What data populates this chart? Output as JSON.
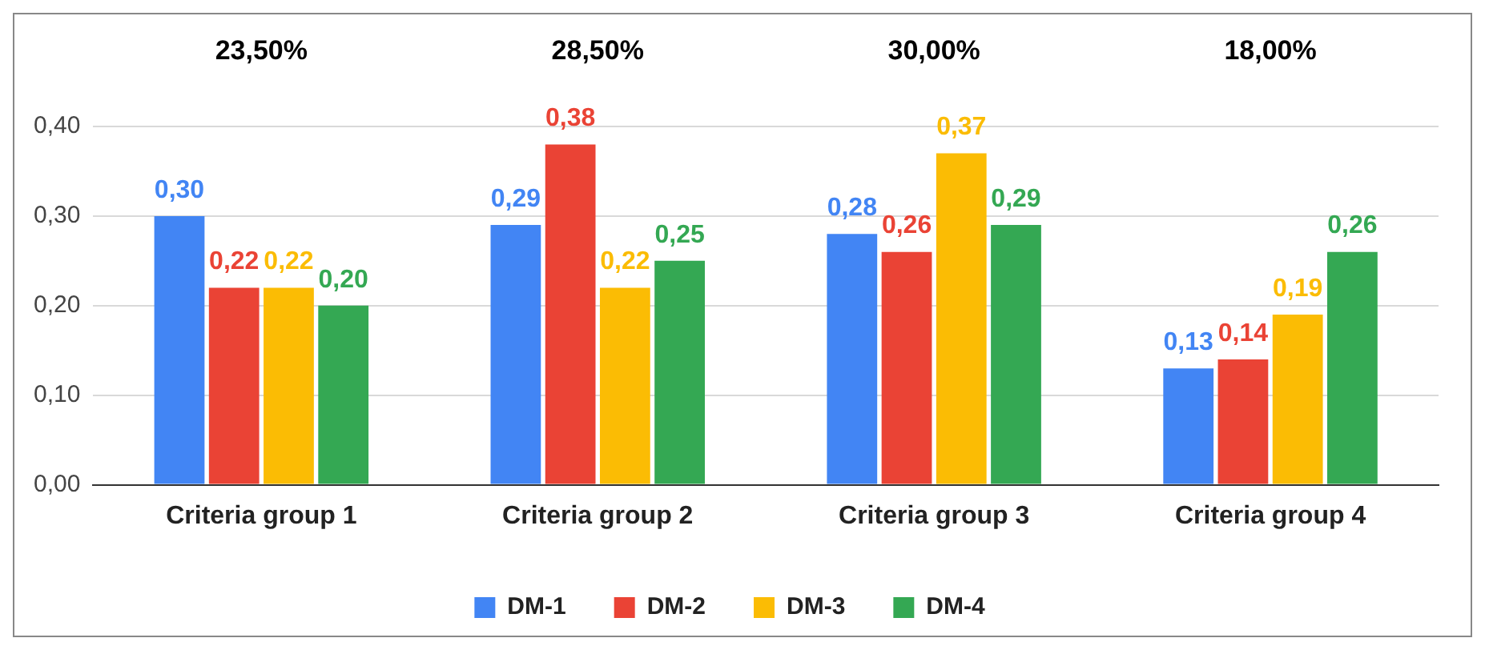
{
  "chart_data": {
    "type": "bar",
    "categories": [
      "Criteria group 1",
      "Criteria group 2",
      "Criteria group 3",
      "Criteria group 4"
    ],
    "series": [
      {
        "name": "DM-1",
        "color": "#4285f4",
        "values": [
          0.3,
          0.29,
          0.28,
          0.13
        ],
        "value_labels": [
          "0,30",
          "0,29",
          "0,28",
          "0,13"
        ]
      },
      {
        "name": "DM-2",
        "color": "#ea4335",
        "values": [
          0.22,
          0.38,
          0.26,
          0.14
        ],
        "value_labels": [
          "0,22",
          "0,38",
          "0,26",
          "0,14"
        ]
      },
      {
        "name": "DM-3",
        "color": "#fbbc04",
        "values": [
          0.22,
          0.22,
          0.37,
          0.19
        ],
        "value_labels": [
          "0,22",
          "0,22",
          "0,37",
          "0,19"
        ]
      },
      {
        "name": "DM-4",
        "color": "#34a853",
        "values": [
          0.2,
          0.25,
          0.29,
          0.26
        ],
        "value_labels": [
          "0,20",
          "0,25",
          "0,29",
          "0,26"
        ]
      }
    ],
    "annotations": [
      "23,50%",
      "28,50%",
      "30,00%",
      "18,00%"
    ],
    "ylim": [
      0,
      0.4
    ],
    "yticks": [
      {
        "value": 0,
        "label": "0,00"
      },
      {
        "value": 0.1,
        "label": "0,10"
      },
      {
        "value": 0.2,
        "label": "0,20"
      },
      {
        "value": 0.3,
        "label": "0,30"
      },
      {
        "value": 0.4,
        "label": "0,40"
      }
    ],
    "grid": "y",
    "legend": "bottom"
  }
}
